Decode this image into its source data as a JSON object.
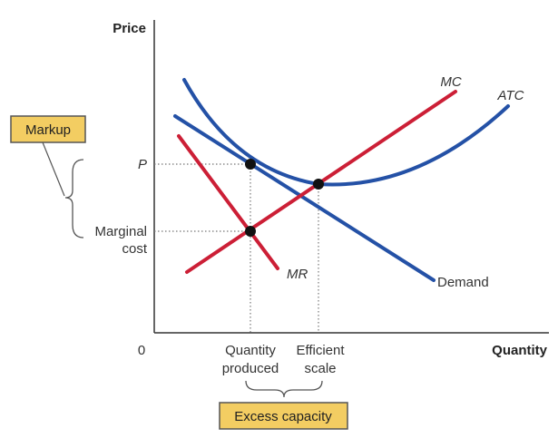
{
  "axes": {
    "y_label": "Price",
    "x_label": "Quantity",
    "origin_label": "0"
  },
  "y_labels": {
    "p": "P",
    "marginal_cost_line1": "Marginal",
    "marginal_cost_line2": "cost"
  },
  "x_labels": {
    "quantity_produced_line1": "Quantity",
    "quantity_produced_line2": "produced",
    "efficient_scale_line1": "Efficient",
    "efficient_scale_line2": "scale"
  },
  "curves": {
    "mc": "MC",
    "atc": "ATC",
    "mr": "MR",
    "demand": "Demand"
  },
  "boxes": {
    "markup": "Markup",
    "excess_capacity": "Excess capacity"
  },
  "colors": {
    "demand_atc": "#2451a6",
    "mc_mr": "#cc1f36",
    "box_fill": "#f3cd62",
    "axis": "#333333"
  }
}
